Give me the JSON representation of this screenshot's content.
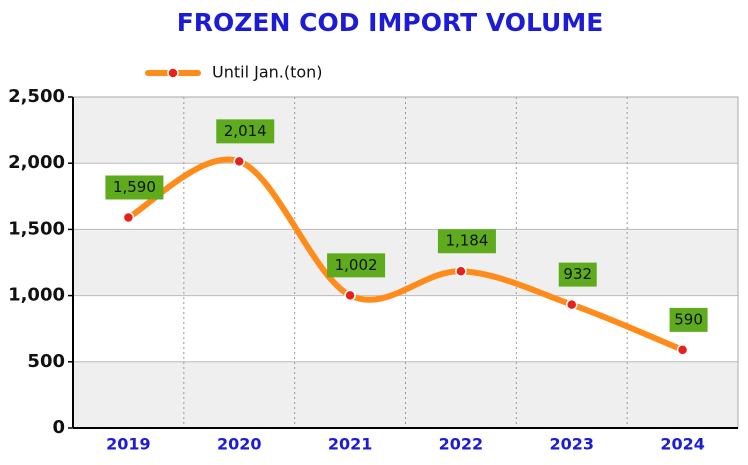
{
  "chart_data": {
    "type": "line",
    "title": "FROZEN COD IMPORT VOLUME",
    "categories": [
      "2019",
      "2020",
      "2021",
      "2022",
      "2023",
      "2024"
    ],
    "series": [
      {
        "name": "Until Jan.(ton)",
        "color": "#ff8c1a",
        "marker_color": "#e8201a",
        "values": [
          1590,
          2014,
          1002,
          1184,
          932,
          590
        ],
        "value_labels": [
          "1,590",
          "2,014",
          "1,002",
          "1,184",
          "932",
          "590"
        ]
      }
    ],
    "ylim": [
      0,
      2500
    ],
    "yticks": [
      0,
      500,
      {
        "value": 1000,
        "label": "1,000"
      },
      {
        "value": 1500,
        "label": "1,500"
      },
      {
        "value": 2000,
        "label": "2,000"
      },
      {
        "value": 2500,
        "label": "2,500"
      }
    ],
    "grid": true,
    "smooth": true,
    "label_color": "#5eab1e"
  }
}
